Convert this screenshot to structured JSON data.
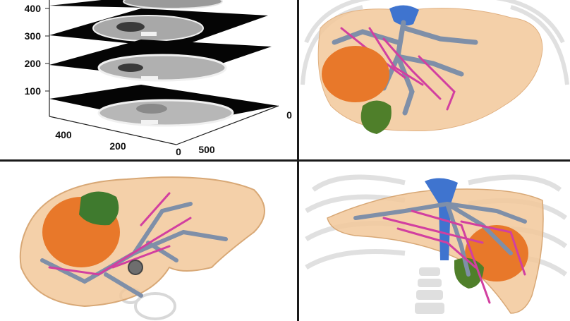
{
  "figure": {
    "panels": [
      "ct-slice-stack",
      "liver-render-front",
      "liver-render-top",
      "liver-render-ribcage"
    ]
  },
  "slice_plot": {
    "z_ticks": [
      "400",
      "300",
      "200",
      "100"
    ],
    "y_ticks": [
      "400",
      "200",
      "0"
    ],
    "x_ticks": [
      "0",
      "500"
    ],
    "right_tick": "0"
  },
  "colors": {
    "liver": "#f2c89a",
    "tumor_orange": "#e8782a",
    "tumor_green": "#4f7f2a",
    "portal_vein": "#7f8fa8",
    "hepatic_artery": "#d23fa0",
    "vena_cava": "#3f74cf",
    "bone": "#c8c8c8"
  }
}
